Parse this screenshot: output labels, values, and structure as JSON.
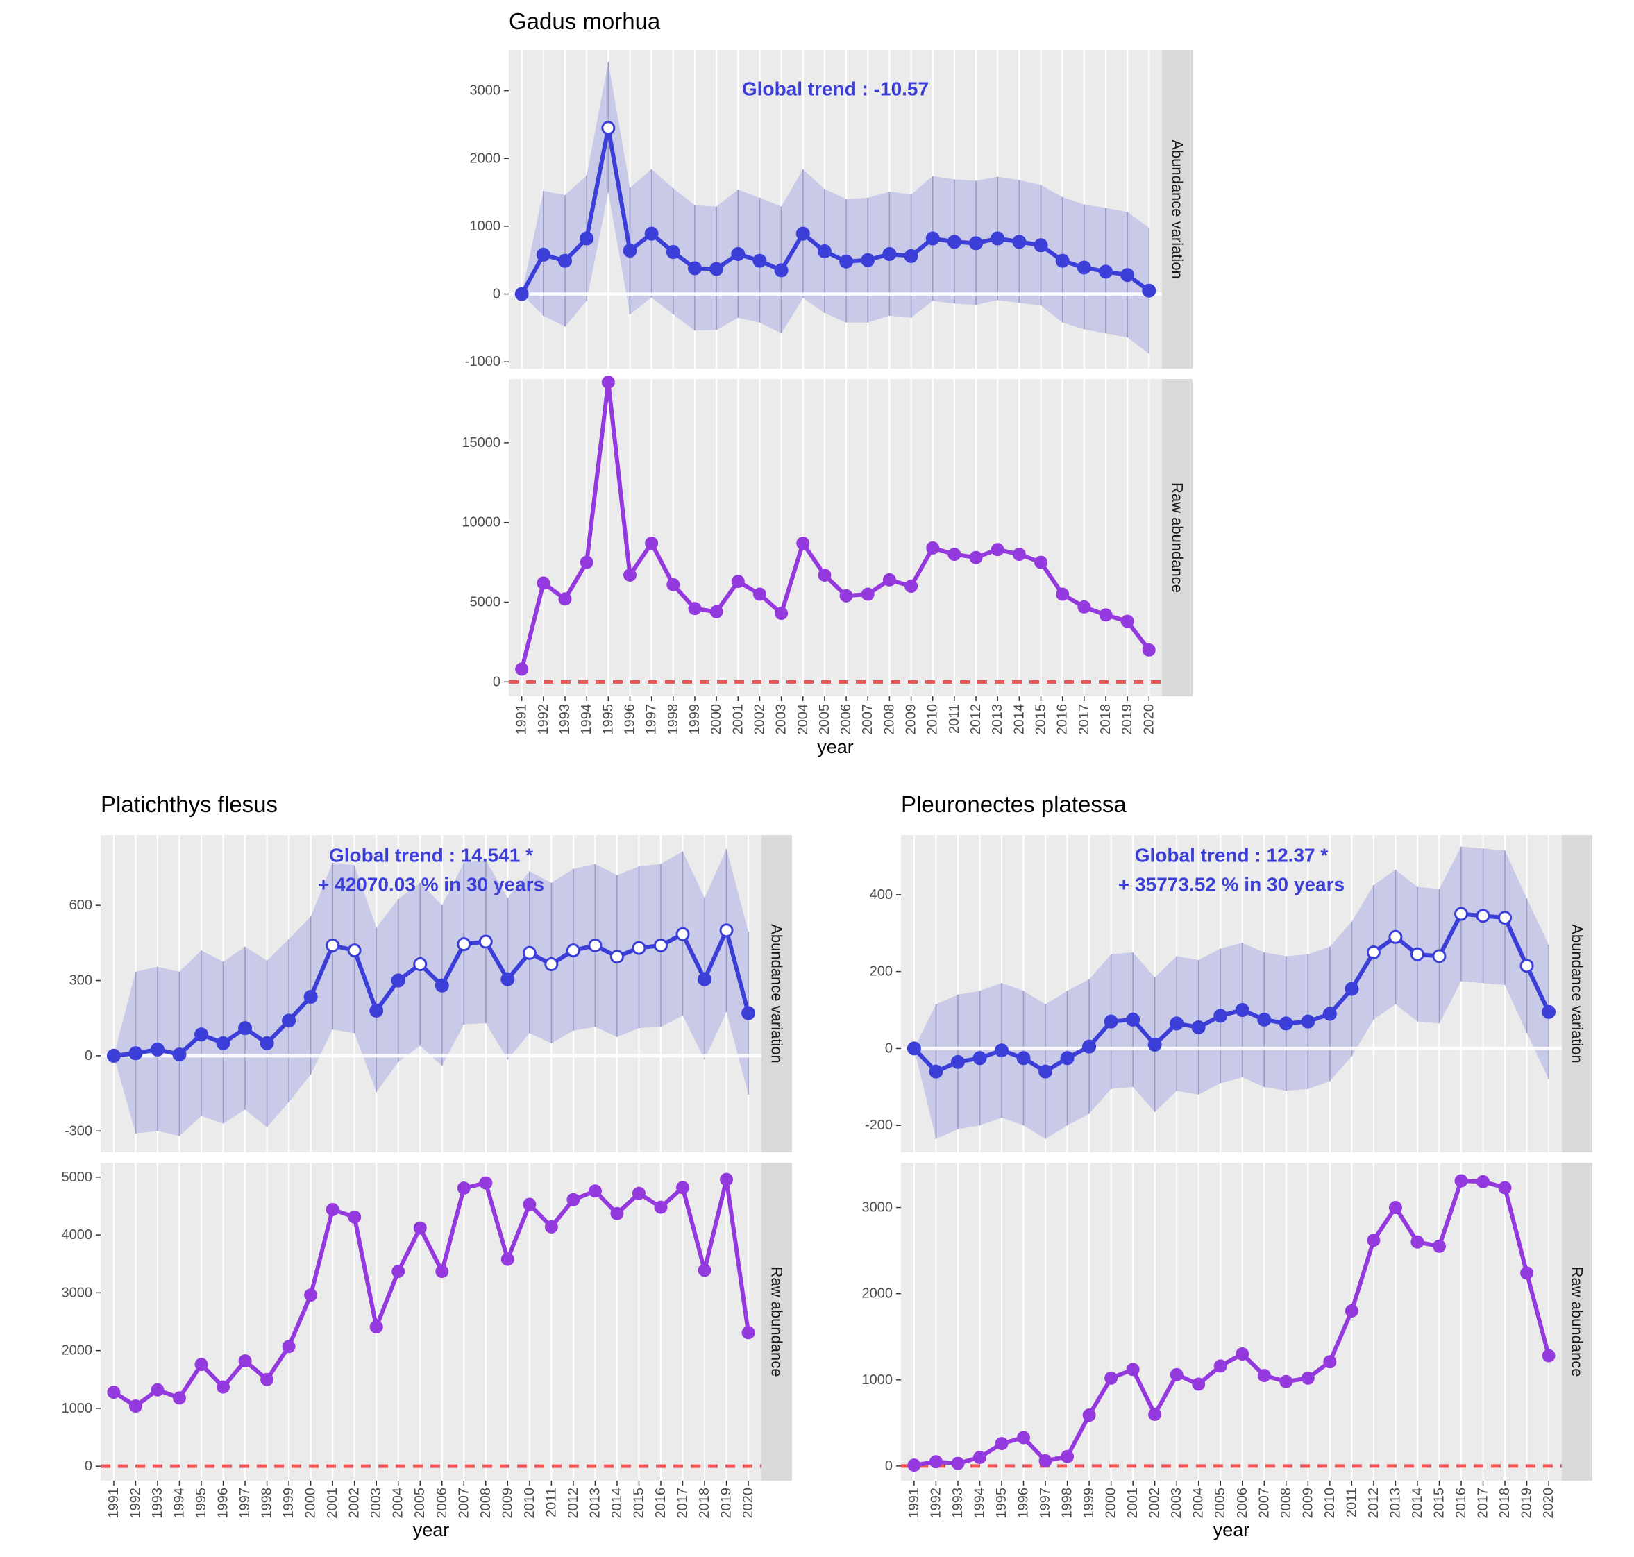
{
  "chart_data": [
    {
      "type": "line",
      "title": "Gadus morhua",
      "xlabel": "year",
      "x": [
        1991,
        1992,
        1993,
        1994,
        1995,
        1996,
        1997,
        1998,
        1999,
        2000,
        2001,
        2002,
        2003,
        2004,
        2005,
        2006,
        2007,
        2008,
        2009,
        2010,
        2011,
        2012,
        2013,
        2014,
        2015,
        2016,
        2017,
        2018,
        2019,
        2020
      ],
      "annotation": [
        "Global trend : -10.57"
      ],
      "panels": [
        {
          "strip": "Abundance variation",
          "ylim": [
            -1100,
            3600
          ],
          "yticks": [
            -1000,
            0,
            1000,
            2000,
            3000
          ],
          "zero_line": "white",
          "series": [
            {
              "values": [
                0,
                580,
                490,
                820,
                2450,
                640,
                890,
                620,
                380,
                370,
                590,
                490,
                350,
                890,
                630,
                480,
                500,
                590,
                560,
                820,
                770,
                750,
                820,
                770,
                720,
                490,
                390,
                330,
                280,
                50
              ],
              "lower": [
                0,
                -320,
                -480,
                -100,
                1500,
                -300,
                -50,
                -300,
                -540,
                -530,
                -350,
                -420,
                -580,
                -60,
                -280,
                -420,
                -420,
                -320,
                -350,
                -100,
                -140,
                -160,
                -90,
                -130,
                -170,
                -420,
                -520,
                -580,
                -640,
                -880
              ],
              "upper": [
                0,
                1520,
                1460,
                1750,
                3420,
                1570,
                1840,
                1560,
                1310,
                1290,
                1540,
                1420,
                1290,
                1840,
                1550,
                1400,
                1420,
                1510,
                1470,
                1740,
                1690,
                1670,
                1730,
                1680,
                1610,
                1430,
                1320,
                1270,
                1210,
                980
              ],
              "significant": [
                false,
                false,
                false,
                false,
                true,
                false,
                false,
                false,
                false,
                false,
                false,
                false,
                false,
                false,
                false,
                false,
                false,
                false,
                false,
                false,
                false,
                false,
                false,
                false,
                false,
                false,
                false,
                false,
                false,
                false
              ]
            }
          ]
        },
        {
          "strip": "Raw abundance",
          "ylim": [
            -900,
            19000
          ],
          "yticks": [
            0,
            5000,
            10000,
            15000
          ],
          "zero_line": "dashed-red",
          "series": [
            {
              "values": [
                800,
                6200,
                5200,
                7500,
                18800,
                6700,
                8700,
                6100,
                4600,
                4400,
                6300,
                5500,
                4300,
                8700,
                6700,
                5400,
                5500,
                6400,
                6000,
                8400,
                8000,
                7800,
                8300,
                8000,
                7500,
                5500,
                4700,
                4200,
                3800,
                2000
              ]
            }
          ]
        }
      ]
    },
    {
      "type": "line",
      "title": "Platichthys flesus",
      "xlabel": "year",
      "x": [
        1991,
        1992,
        1993,
        1994,
        1995,
        1996,
        1997,
        1998,
        1999,
        2000,
        2001,
        2002,
        2003,
        2004,
        2005,
        2006,
        2007,
        2008,
        2009,
        2010,
        2011,
        2012,
        2013,
        2014,
        2015,
        2016,
        2017,
        2018,
        2019,
        2020
      ],
      "annotation": [
        "Global trend : 14.541 *",
        "+ 42070.03 % in 30 years"
      ],
      "panels": [
        {
          "strip": "Abundance variation",
          "ylim": [
            -385,
            880
          ],
          "yticks": [
            -300,
            0,
            300,
            600
          ],
          "zero_line": "white",
          "series": [
            {
              "values": [
                0,
                10,
                25,
                5,
                85,
                50,
                110,
                50,
                140,
                235,
                440,
                420,
                180,
                300,
                365,
                280,
                445,
                455,
                305,
                410,
                365,
                420,
                440,
                395,
                430,
                440,
                485,
                305,
                500,
                170
              ],
              "lower": [
                0,
                -310,
                -300,
                -320,
                -240,
                -270,
                -215,
                -285,
                -185,
                -75,
                105,
                90,
                -145,
                -25,
                40,
                -40,
                125,
                130,
                -15,
                90,
                50,
                100,
                115,
                75,
                110,
                115,
                160,
                -15,
                175,
                -155
              ],
              "upper": [
                0,
                335,
                355,
                335,
                420,
                375,
                435,
                380,
                465,
                555,
                770,
                760,
                510,
                625,
                690,
                600,
                770,
                780,
                630,
                735,
                690,
                745,
                765,
                720,
                755,
                765,
                815,
                630,
                825,
                495
              ],
              "significant": [
                false,
                false,
                false,
                false,
                false,
                false,
                false,
                false,
                false,
                false,
                true,
                true,
                false,
                false,
                true,
                false,
                true,
                true,
                false,
                true,
                true,
                true,
                true,
                true,
                true,
                true,
                true,
                false,
                true,
                false
              ]
            }
          ]
        },
        {
          "strip": "Raw abundance",
          "ylim": [
            -250,
            5250
          ],
          "yticks": [
            0,
            1000,
            2000,
            3000,
            4000,
            5000
          ],
          "zero_line": "dashed-red",
          "series": [
            {
              "values": [
                1280,
                1040,
                1320,
                1180,
                1760,
                1370,
                1820,
                1500,
                2070,
                2960,
                4440,
                4310,
                2410,
                3370,
                4120,
                3370,
                4810,
                4900,
                3580,
                4530,
                4140,
                4610,
                4760,
                4370,
                4720,
                4480,
                4820,
                3390,
                4960,
                2310
              ]
            }
          ]
        }
      ]
    },
    {
      "type": "line",
      "title": "Pleuronectes platessa",
      "xlabel": "year",
      "x": [
        1991,
        1992,
        1993,
        1994,
        1995,
        1996,
        1997,
        1998,
        1999,
        2000,
        2001,
        2002,
        2003,
        2004,
        2005,
        2006,
        2007,
        2008,
        2009,
        2010,
        2011,
        2012,
        2013,
        2014,
        2015,
        2016,
        2017,
        2018,
        2019,
        2020
      ],
      "annotation": [
        "Global trend : 12.37 *",
        "+ 35773.52 % in 30 years"
      ],
      "panels": [
        {
          "strip": "Abundance variation",
          "ylim": [
            -270,
            555
          ],
          "yticks": [
            -200,
            0,
            200,
            400
          ],
          "zero_line": "white",
          "series": [
            {
              "values": [
                0,
                -60,
                -35,
                -25,
                -5,
                -25,
                -60,
                -25,
                5,
                70,
                75,
                10,
                65,
                55,
                85,
                100,
                75,
                65,
                70,
                90,
                155,
                250,
                290,
                245,
                240,
                350,
                345,
                340,
                215,
                95
              ],
              "lower": [
                0,
                -235,
                -210,
                -200,
                -180,
                -200,
                -235,
                -200,
                -170,
                -105,
                -100,
                -165,
                -110,
                -120,
                -90,
                -75,
                -100,
                -110,
                -105,
                -85,
                -20,
                75,
                115,
                70,
                65,
                175,
                170,
                165,
                40,
                -80
              ],
              "upper": [
                0,
                115,
                140,
                150,
                170,
                150,
                115,
                150,
                180,
                245,
                250,
                185,
                240,
                230,
                260,
                275,
                250,
                240,
                245,
                265,
                330,
                425,
                465,
                420,
                415,
                525,
                520,
                515,
                390,
                270
              ],
              "significant": [
                false,
                false,
                false,
                false,
                false,
                false,
                false,
                false,
                false,
                false,
                false,
                false,
                false,
                false,
                false,
                false,
                false,
                false,
                false,
                false,
                false,
                true,
                true,
                true,
                true,
                true,
                true,
                true,
                true,
                false
              ]
            }
          ]
        },
        {
          "strip": "Raw abundance",
          "ylim": [
            -170,
            3520
          ],
          "yticks": [
            0,
            1000,
            2000,
            3000
          ],
          "zero_line": "dashed-red",
          "series": [
            {
              "values": [
                10,
                50,
                30,
                100,
                260,
                330,
                60,
                110,
                590,
                1020,
                1120,
                600,
                1060,
                950,
                1160,
                1300,
                1050,
                980,
                1020,
                1210,
                1800,
                2620,
                3000,
                2600,
                2550,
                3310,
                3300,
                3230,
                2240,
                1280
              ]
            }
          ]
        }
      ]
    }
  ]
}
